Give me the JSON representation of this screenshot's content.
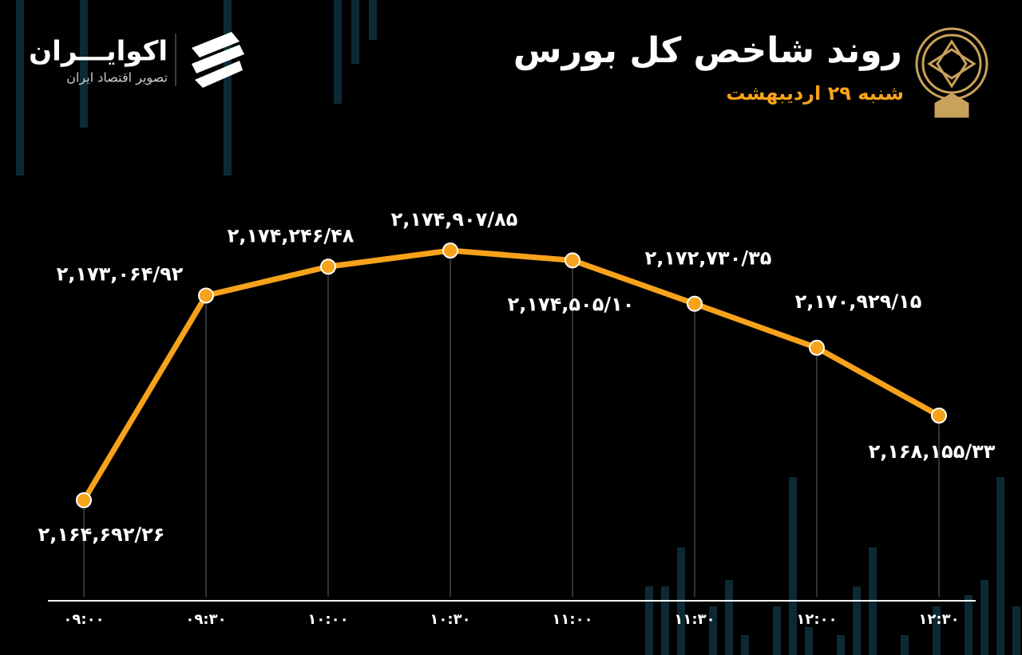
{
  "brand": {
    "name": "اکوایـــران",
    "tagline": "تصویر اقتصاد ایران"
  },
  "chart_data": {
    "type": "line",
    "title": "روند شاخص کل بورس",
    "subtitle": "شنبه ۲۹ اردیبهشت",
    "categories": [
      "۰۹:۰۰",
      "۰۹:۳۰",
      "۱۰:۰۰",
      "۱۰:۳۰",
      "۱۱:۰۰",
      "۱۱:۳۰",
      "۱۲:۰۰",
      "۱۲:۳۰"
    ],
    "values": [
      2164692.26,
      2173064.92,
      2174246.48,
      2174907.85,
      2174505.1,
      2172730.35,
      2170929.15,
      2168155.33
    ],
    "value_labels": [
      "۲,۱۶۴,۶۹۲/۲۶",
      "۲,۱۷۳,۰۶۴/۹۲",
      "۲,۱۷۴,۲۴۶/۴۸",
      "۲,۱۷۴,۹۰۷/۸۵",
      "۲,۱۷۴,۵۰۵/۱۰",
      "۲,۱۷۲,۷۳۰/۳۵",
      "۲,۱۷۰,۹۲۹/۱۵",
      "۲,۱۶۸,۱۵۵/۳۳"
    ],
    "color": "#f7a21b"
  }
}
